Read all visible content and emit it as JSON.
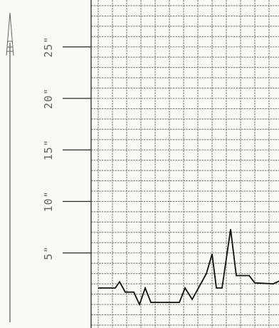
{
  "chart_data": {
    "type": "line",
    "y_tick_labels": [
      "5\"",
      "10\"",
      "15\"",
      "20\"",
      "25\""
    ],
    "y_tick_values": [
      5,
      10,
      15,
      20,
      25
    ],
    "ylim": [
      0,
      27
    ],
    "grid": true,
    "xlim": [
      0,
      17.5
    ],
    "series": [
      {
        "values": [
          {
            "x": 0,
            "y": 1.6
          },
          {
            "x": 1.2,
            "y": 1.6
          },
          {
            "x": 1.5,
            "y": 2.2
          },
          {
            "x": 1.9,
            "y": 1.2
          },
          {
            "x": 2.5,
            "y": 1.2
          },
          {
            "x": 2.9,
            "y": 0
          },
          {
            "x": 3.3,
            "y": 1.6
          },
          {
            "x": 3.7,
            "y": 0.2
          },
          {
            "x": 5.7,
            "y": 0.2
          },
          {
            "x": 6.1,
            "y": 1.6
          },
          {
            "x": 6.6,
            "y": 0.5
          },
          {
            "x": 7.6,
            "y": 3.0
          },
          {
            "x": 8.0,
            "y": 4.9
          },
          {
            "x": 8.3,
            "y": 1.6
          },
          {
            "x": 8.7,
            "y": 1.6
          },
          {
            "x": 9.3,
            "y": 7.3
          },
          {
            "x": 9.7,
            "y": 2.8
          },
          {
            "x": 10.6,
            "y": 2.8
          },
          {
            "x": 11.0,
            "y": 2.1
          },
          {
            "x": 12.3,
            "y": 2.0
          },
          {
            "x": 12.9,
            "y": 2.4
          },
          {
            "x": 13.4,
            "y": 3.0
          }
        ]
      }
    ]
  }
}
